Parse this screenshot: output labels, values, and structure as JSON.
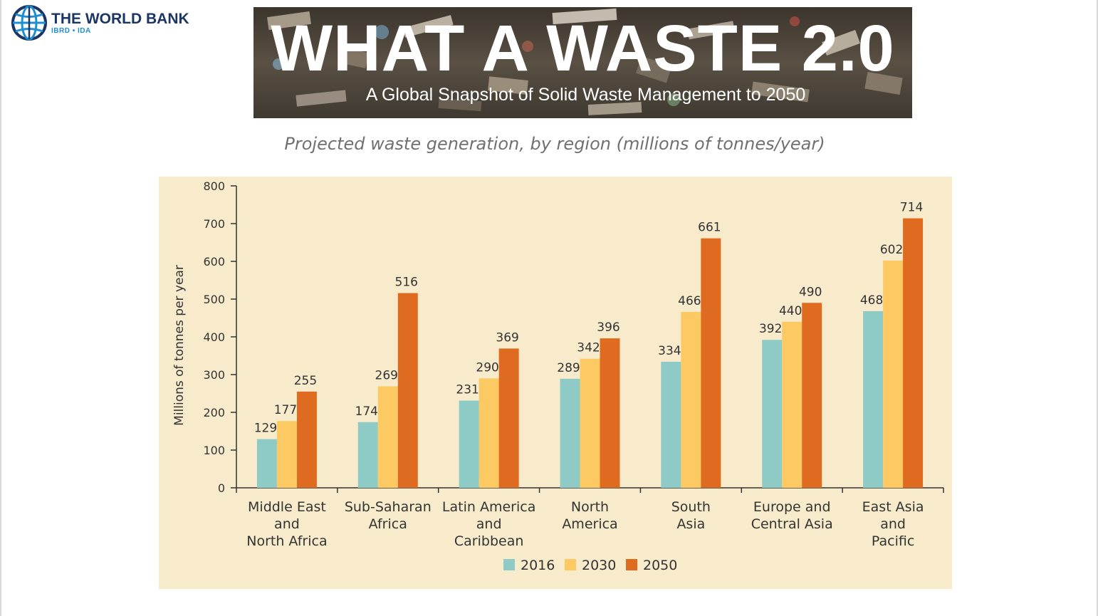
{
  "logo": {
    "name": "THE WORLD BANK",
    "subtitle": "IBRD • IDA",
    "icon": "globe-icon",
    "color": "#1b3664",
    "accent": "#1f8fd3"
  },
  "banner": {
    "title": "WHAT A WASTE 2.0",
    "subtitle": "A Global Snapshot of Solid Waste Management to 2050"
  },
  "heading": "Projected waste generation, by region (millions of tonnes/year)",
  "chart_data": {
    "type": "bar",
    "title": "Projected waste generation, by region (millions of tonnes/year)",
    "xlabel": "",
    "ylabel": "Millions of tonnes per year",
    "ylim": [
      0,
      800
    ],
    "yticks": [
      0,
      100,
      200,
      300,
      400,
      500,
      600,
      700,
      800
    ],
    "categories": [
      [
        "Middle East",
        "and",
        "North Africa"
      ],
      [
        "Sub-Saharan",
        "Africa"
      ],
      [
        "Latin America",
        "and",
        "Caribbean"
      ],
      [
        "North",
        "America"
      ],
      [
        "South",
        "Asia"
      ],
      [
        "Europe and",
        "Central Asia"
      ],
      [
        "East Asia",
        "and",
        "Pacific"
      ]
    ],
    "series": [
      {
        "name": "2016",
        "color": "#8ecac6",
        "values": [
          129,
          174,
          231,
          289,
          334,
          392,
          468
        ]
      },
      {
        "name": "2030",
        "color": "#fdc963",
        "values": [
          177,
          269,
          290,
          342,
          466,
          440,
          602
        ]
      },
      {
        "name": "2050",
        "color": "#de6b1f",
        "values": [
          255,
          516,
          369,
          396,
          661,
          490,
          714
        ]
      }
    ],
    "legend": "bottom",
    "background": "#f8ebcb",
    "grid": false
  }
}
